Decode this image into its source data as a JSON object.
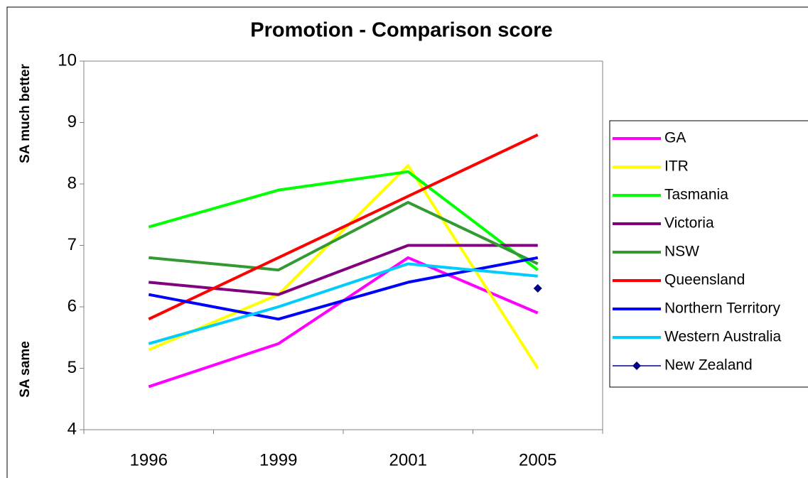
{
  "chart_data": {
    "type": "line",
    "title": "Promotion - Comparison score",
    "y_annotations": [
      "SA much better",
      "SA same"
    ],
    "categories": [
      "1996",
      "1999",
      "2001",
      "2005"
    ],
    "ylim": [
      4,
      10
    ],
    "yticks": [
      4,
      5,
      6,
      7,
      8,
      9,
      10
    ],
    "grid": false,
    "legend": "right",
    "series": [
      {
        "name": "GA",
        "color": "#ff00ff",
        "values": [
          4.7,
          5.4,
          6.8,
          5.9
        ]
      },
      {
        "name": "ITR",
        "color": "#ffff00",
        "values": [
          5.3,
          6.2,
          8.3,
          5.0
        ]
      },
      {
        "name": "Tasmania",
        "color": "#00ff00",
        "values": [
          7.3,
          7.9,
          8.2,
          6.6
        ]
      },
      {
        "name": "Victoria",
        "color": "#800080",
        "values": [
          6.4,
          6.2,
          7.0,
          7.0
        ]
      },
      {
        "name": "NSW",
        "color": "#339933",
        "values": [
          6.8,
          6.6,
          7.7,
          6.7
        ]
      },
      {
        "name": "Queensland",
        "color": "#ff0000",
        "values": [
          5.8,
          6.8,
          7.8,
          8.8
        ]
      },
      {
        "name": "Northern Territory",
        "color": "#0000ff",
        "values": [
          6.2,
          5.8,
          6.4,
          6.8
        ]
      },
      {
        "name": "Western Australia",
        "color": "#00ccff",
        "values": [
          5.4,
          6.0,
          6.7,
          6.5
        ]
      },
      {
        "name": "New Zealand",
        "color": "#000080",
        "marker": "diamond",
        "values": [
          null,
          null,
          null,
          6.3
        ]
      }
    ]
  }
}
